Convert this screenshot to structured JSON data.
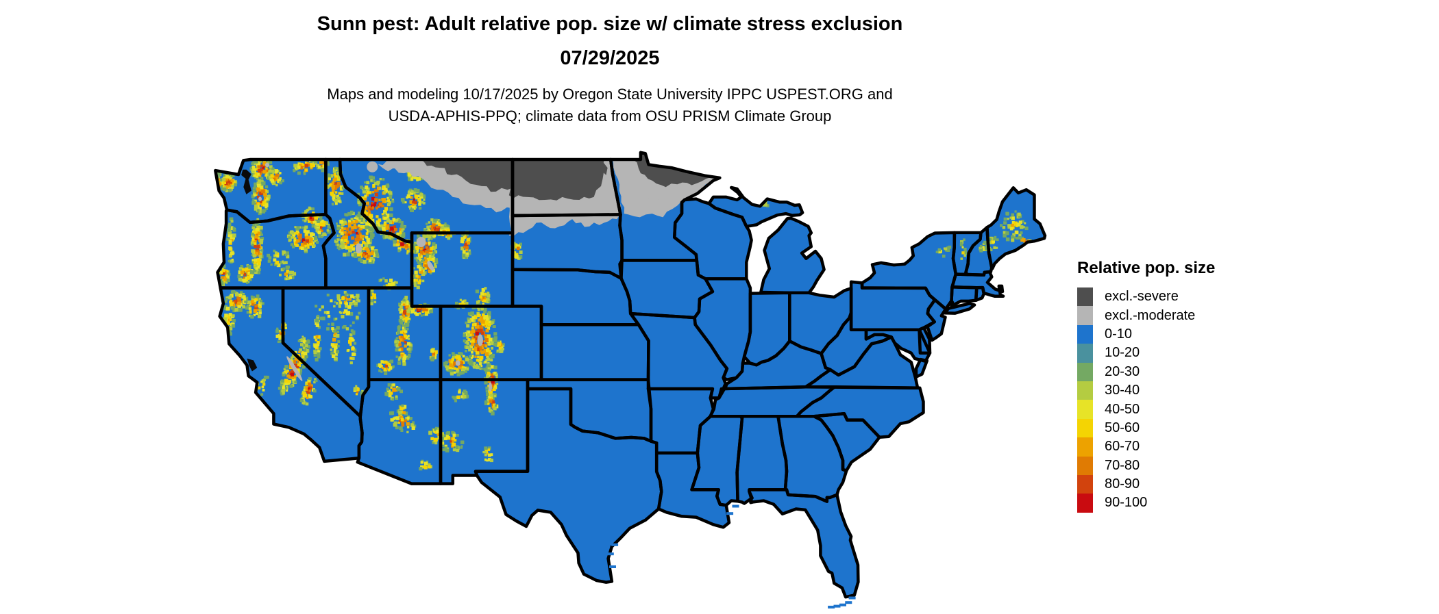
{
  "title": {
    "line1": "Sunn pest: Adult relative pop. size w/ climate stress exclusion",
    "line2": "07/29/2025"
  },
  "subtitle": {
    "line1": "Maps and modeling 10/17/2025 by Oregon State University IPPC USPEST.ORG and",
    "line2": "USDA-APHIS-PPQ; climate data from OSU PRISM Climate Group"
  },
  "legend": {
    "title": "Relative pop. size",
    "items": [
      {
        "label": "excl.-severe",
        "color": "#4e4e4e"
      },
      {
        "label": "excl.-moderate",
        "color": "#b5b5b5"
      },
      {
        "label": "0-10",
        "color": "#1e74cd"
      },
      {
        "label": "10-20",
        "color": "#4a919e"
      },
      {
        "label": "20-30",
        "color": "#74a963"
      },
      {
        "label": "30-40",
        "color": "#b4cc41"
      },
      {
        "label": "40-50",
        "color": "#e7e327"
      },
      {
        "label": "50-60",
        "color": "#f4d403"
      },
      {
        "label": "60-70",
        "color": "#eda200"
      },
      {
        "label": "70-80",
        "color": "#e07b03"
      },
      {
        "label": "80-90",
        "color": "#d2430d"
      },
      {
        "label": "90-100",
        "color": "#c90b10"
      }
    ]
  },
  "map_data": {
    "type": "choropleth-raster",
    "region": "continental United States",
    "base_class": "0-10",
    "colors": {
      "base": "#1e74cd",
      "severe": "#4e4e4e",
      "moderate": "#b5b5b5",
      "water": "#0a0a0a",
      "border": "#000000",
      "background": "#ffffff"
    },
    "ramp": [
      "#74a963",
      "#b4cc41",
      "#e7e327",
      "#f4d403",
      "#eda200",
      "#e07b03",
      "#d2430d",
      "#c90b10"
    ],
    "exclusion_moderate_blobs": [
      [
        -113.3,
        49.3,
        -112.6,
        48.6,
        -111.6,
        48.25,
        -110.3,
        47.95,
        -109.3,
        47.35,
        -108.2,
        46.95,
        -107.1,
        46.55,
        -105.9,
        46.35,
        -104.8,
        46.2,
        -104.05,
        46.35,
        -103.9,
        49.3
      ],
      [
        -113.4,
        48.75,
        -112.7,
        48.35,
        -112.0,
        48.5,
        -112.5,
        48.95
      ],
      [
        -104.3,
        49.3,
        -104.3,
        44.85,
        -103.3,
        45.0,
        -102.4,
        45.55,
        -101.1,
        45.25,
        -99.9,
        45.75,
        -98.7,
        45.35,
        -97.7,
        45.55,
        -96.8,
        45.75,
        -96.5,
        46.1,
        -96.8,
        47.2,
        -97.05,
        48.3,
        -97.2,
        49.3
      ],
      [
        -97.3,
        49.3,
        -96.9,
        48.2,
        -96.5,
        47.0,
        -96.3,
        46.05,
        -96.0,
        46.0,
        -95.2,
        45.85,
        -94.35,
        46.05,
        -93.6,
        45.85,
        -92.95,
        46.3,
        -92.3,
        46.72,
        -91.2,
        47.15,
        -90.3,
        47.75,
        -89.5,
        48.0,
        -90.7,
        48.2,
        -92.0,
        48.4,
        -93.0,
        48.6,
        -93.9,
        48.7,
        -94.65,
        48.8,
        -94.85,
        49.4,
        -95.15,
        49.45,
        -95.15,
        49.3
      ],
      [
        -94.9,
        46.6,
        -94.2,
        46.35,
        -93.5,
        46.5,
        -94.0,
        46.85,
        -94.6,
        46.9
      ]
    ],
    "exclusion_severe_blobs": [
      [
        -110.7,
        49.3,
        -110.0,
        48.65,
        -109.1,
        48.55,
        -108.3,
        48.15,
        -107.3,
        47.85,
        -106.2,
        47.55,
        -105.2,
        47.25,
        -104.4,
        47.35,
        -104.05,
        47.45,
        -103.9,
        49.3
      ],
      [
        -104.3,
        49.3,
        -104.3,
        47.05,
        -103.0,
        46.95,
        -101.8,
        46.8,
        -100.6,
        46.95,
        -99.4,
        46.8,
        -98.4,
        46.95,
        -97.9,
        47.55,
        -97.7,
        48.35,
        -97.55,
        49.3
      ],
      [
        -95.7,
        49.0,
        -95.15,
        48.25,
        -94.35,
        47.85,
        -93.4,
        47.5,
        -92.6,
        47.65,
        -91.6,
        47.6,
        -90.6,
        47.95,
        -89.5,
        48.0,
        -90.7,
        48.2,
        -92.0,
        48.4,
        -93.0,
        48.6,
        -93.9,
        48.7,
        -94.65,
        48.8,
        -94.85,
        49.4,
        -95.15,
        49.45,
        -95.3,
        49.3
      ],
      [
        -97.8,
        48.9,
        -97.45,
        48.55,
        -97.55,
        48.15,
        -97.95,
        48.45
      ]
    ],
    "speckle_clusters": [
      [
        -123.8,
        47.75,
        0.55,
        0.5,
        0,
        70,
        1
      ],
      [
        -124.45,
        47.5,
        0.18,
        0.8,
        0,
        25,
        0.9
      ],
      [
        -124.6,
        48.3,
        0.12,
        0.12,
        0,
        6,
        1
      ],
      [
        -121.45,
        48.45,
        0.8,
        0.6,
        0,
        90,
        1
      ],
      [
        -121.55,
        46.95,
        0.6,
        0.9,
        0,
        90,
        1
      ],
      [
        -120.5,
        48.0,
        0.55,
        0.45,
        0,
        35,
        0.8
      ],
      [
        -118.4,
        48.6,
        0.95,
        0.42,
        0,
        45,
        0.8
      ],
      [
        -117.25,
        48.75,
        0.4,
        0.35,
        0,
        20,
        0.8
      ],
      [
        -118.0,
        45.85,
        0.75,
        0.5,
        -20,
        50,
        0.9
      ],
      [
        -121.8,
        44.3,
        0.38,
        1.55,
        0,
        115,
        1
      ],
      [
        -123.6,
        44.5,
        0.25,
        1.4,
        0,
        40,
        0.6
      ],
      [
        -124.1,
        42.7,
        0.4,
        0.55,
        0,
        35,
        0.95
      ],
      [
        -122.6,
        42.75,
        0.55,
        0.5,
        0,
        45,
        0.9
      ],
      [
        -118.6,
        44.65,
        1.05,
        0.7,
        -15,
        85,
        1
      ],
      [
        -117.25,
        45.25,
        0.5,
        0.5,
        0,
        40,
        0.95
      ],
      [
        -119.7,
        42.75,
        0.55,
        0.4,
        0,
        22,
        0.6
      ],
      [
        -120.3,
        43.6,
        0.8,
        0.5,
        0,
        25,
        0.5
      ],
      [
        -115.1,
        44.9,
        1.35,
        1.25,
        0,
        180,
        1
      ],
      [
        -116.35,
        47.55,
        0.55,
        1.15,
        0,
        60,
        0.9
      ],
      [
        -114.2,
        43.85,
        0.85,
        0.5,
        0,
        60,
        0.9
      ],
      [
        -111.6,
        44.35,
        0.95,
        0.45,
        -25,
        50,
        0.9
      ],
      [
        -112.7,
        42.25,
        0.65,
        0.3,
        0,
        18,
        0.5
      ],
      [
        -113.6,
        46.6,
        1.25,
        1.5,
        0,
        170,
        1
      ],
      [
        -110.9,
        46.75,
        0.8,
        0.6,
        0,
        55,
        0.9
      ],
      [
        -112.4,
        45.2,
        0.95,
        0.6,
        0,
        70,
        1
      ],
      [
        -109.4,
        45.25,
        0.8,
        0.5,
        0,
        55,
        1
      ],
      [
        -110.8,
        48.25,
        0.55,
        0.55,
        0,
        30,
        0.9
      ],
      [
        -108.6,
        45.0,
        0.5,
        0.35,
        0,
        25,
        0.8
      ],
      [
        -110.15,
        44.1,
        0.8,
        0.9,
        0,
        85,
        1
      ],
      [
        -109.85,
        43.25,
        0.55,
        0.65,
        -35,
        50,
        1
      ],
      [
        -107.3,
        44.35,
        0.32,
        0.75,
        0,
        40,
        1
      ],
      [
        -106.1,
        41.5,
        0.5,
        0.55,
        0,
        30,
        0.8
      ],
      [
        -110.6,
        42.7,
        0.45,
        0.7,
        0,
        28,
        0.8
      ],
      [
        -107.6,
        41.1,
        0.4,
        0.3,
        0,
        15,
        0.6
      ],
      [
        -111.5,
        40.7,
        0.45,
        0.8,
        0,
        60,
        1
      ],
      [
        -110.45,
        40.8,
        0.9,
        0.32,
        0,
        45,
        1
      ],
      [
        -111.65,
        38.9,
        0.55,
        1.15,
        0,
        70,
        1
      ],
      [
        -112.85,
        37.7,
        0.6,
        0.4,
        0,
        28,
        0.8
      ],
      [
        -109.5,
        38.4,
        0.28,
        0.35,
        0,
        14,
        0.8
      ],
      [
        -113.7,
        41.5,
        0.3,
        0.5,
        0,
        14,
        0.5
      ],
      [
        -106.3,
        39.25,
        1.1,
        1.85,
        0,
        240,
        1
      ],
      [
        -107.9,
        37.85,
        0.9,
        0.6,
        0,
        75,
        1
      ],
      [
        -105.5,
        36.9,
        0.45,
        0.95,
        0,
        55,
        1
      ],
      [
        -104.9,
        38.8,
        0.3,
        0.4,
        0,
        18,
        0.7
      ],
      [
        -105.5,
        35.7,
        0.4,
        0.6,
        0,
        30,
        0.9
      ],
      [
        -108.3,
        33.6,
        0.85,
        0.55,
        0,
        35,
        0.7
      ],
      [
        -105.75,
        32.9,
        0.35,
        0.5,
        0,
        16,
        0.6
      ],
      [
        -107.7,
        36.1,
        0.5,
        0.4,
        0,
        18,
        0.6
      ],
      [
        -111.7,
        34.7,
        1.0,
        0.5,
        -25,
        45,
        0.8
      ],
      [
        -112.3,
        36.35,
        0.55,
        0.45,
        0,
        25,
        0.7
      ],
      [
        -111.65,
        35.3,
        0.3,
        0.3,
        0,
        14,
        0.9
      ],
      [
        -109.35,
        33.95,
        0.55,
        0.45,
        0,
        28,
        0.8
      ],
      [
        -110.1,
        32.3,
        0.5,
        0.3,
        0,
        12,
        0.6
      ],
      [
        -117.65,
        39.3,
        0.28,
        1.25,
        0,
        30,
        0.7
      ],
      [
        -116.4,
        39.1,
        0.28,
        1.3,
        0,
        28,
        0.7
      ],
      [
        -115.25,
        38.7,
        0.28,
        1.1,
        0,
        24,
        0.7
      ],
      [
        -114.75,
        36.35,
        0.3,
        0.4,
        0,
        14,
        0.8
      ],
      [
        -115.6,
        41.35,
        0.95,
        0.45,
        0,
        32,
        0.7
      ],
      [
        -118.75,
        38.6,
        0.45,
        0.9,
        -30,
        26,
        0.6
      ],
      [
        -116.2,
        40.7,
        1.6,
        1.1,
        0,
        40,
        0.4
      ],
      [
        -119.25,
        37.6,
        0.55,
        1.65,
        -32,
        130,
        1
      ],
      [
        -118.2,
        36.45,
        0.4,
        0.9,
        -25,
        45,
        1
      ],
      [
        -121.95,
        40.95,
        0.6,
        0.65,
        0,
        50,
        0.9
      ],
      [
        -123.25,
        41.3,
        0.75,
        0.55,
        0,
        60,
        0.9
      ],
      [
        -123.75,
        40.3,
        0.35,
        0.9,
        0,
        35,
        0.7
      ],
      [
        -121.6,
        36.5,
        0.4,
        0.9,
        -40,
        28,
        0.55
      ],
      [
        -120.1,
        39.6,
        0.35,
        0.6,
        -20,
        25,
        0.8
      ],
      [
        -103.75,
        44.05,
        0.38,
        0.55,
        0,
        30,
        0.9
      ],
      [
        -69.2,
        45.4,
        0.95,
        0.85,
        0,
        48,
        0.45
      ],
      [
        -70.7,
        44.4,
        0.45,
        0.4,
        0,
        16,
        0.5
      ],
      [
        -68.35,
        44.52,
        0.65,
        0.14,
        -15,
        16,
        1
      ],
      [
        -71.3,
        44.2,
        0.3,
        0.3,
        0,
        14,
        0.55
      ],
      [
        -72.75,
        44.0,
        0.17,
        0.75,
        0,
        11,
        0.4
      ],
      [
        -74.15,
        44.1,
        0.5,
        0.4,
        0,
        11,
        0.35
      ],
      [
        -88.95,
        47.88,
        0.32,
        0.1,
        -25,
        9,
        1
      ],
      [
        -88.35,
        47.25,
        0.3,
        0.12,
        -35,
        8,
        1
      ],
      [
        -86.7,
        46.55,
        0.55,
        0.12,
        0,
        9,
        0.5
      ]
    ],
    "gray_patches": [
      [
        -119.2,
        37.6,
        0.14,
        0.8,
        -32
      ],
      [
        -110.4,
        44.5,
        0.32,
        0.28,
        0
      ],
      [
        -109.75,
        43.2,
        0.16,
        0.3,
        -30
      ],
      [
        -114.75,
        44.15,
        0.22,
        0.28,
        0
      ],
      [
        -113.8,
        48.6,
        0.38,
        0.3,
        0
      ],
      [
        -106.3,
        39.15,
        0.2,
        0.32,
        0
      ],
      [
        -107.85,
        37.9,
        0.16,
        0.16,
        0
      ],
      [
        -105.6,
        36.6,
        0.12,
        0.25,
        0
      ],
      [
        -121.6,
        46.85,
        0.12,
        0.12,
        0
      ],
      [
        -121.1,
        48.7,
        0.15,
        0.12,
        0
      ]
    ],
    "offshore_specks": [
      [
        -81.9,
        24.6
      ],
      [
        -81.5,
        24.65
      ],
      [
        -81.1,
        24.72
      ],
      [
        -80.7,
        24.85
      ],
      [
        -80.45,
        25.1
      ],
      [
        -97.25,
        27.5
      ],
      [
        -97.1,
        26.8
      ],
      [
        -96.95,
        28.0
      ],
      [
        -88.95,
        29.7
      ],
      [
        -88.55,
        30.1
      ]
    ]
  }
}
